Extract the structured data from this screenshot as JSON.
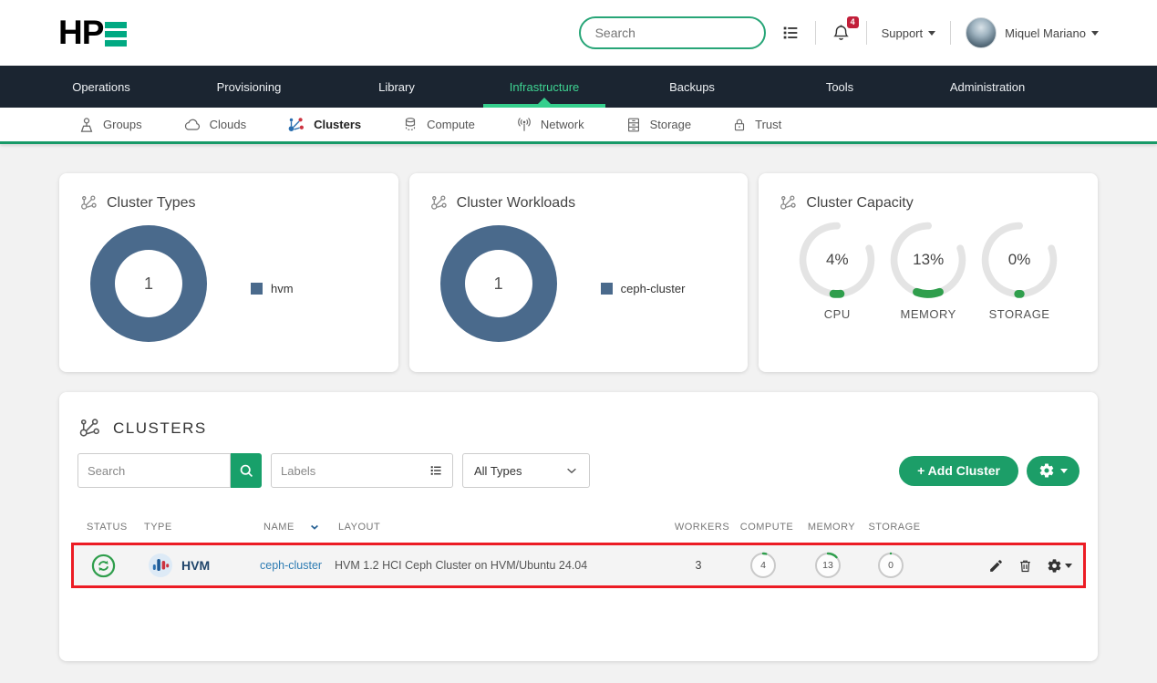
{
  "colors": {
    "brand_green": "#01a982",
    "button_green": "#1c9e68",
    "nav_dark": "#1b2531",
    "nav_active_green": "#3ed492",
    "donut_blue": "#4a6a8c",
    "gauge_green": "#2f9e4c",
    "link_blue": "#2e7cb3",
    "badge_red": "#c21f3a",
    "highlight_red": "#ec1c24"
  },
  "header": {
    "logo_hp": "HP",
    "search_placeholder": "Search",
    "notification_count": "4",
    "support_label": "Support",
    "user_name": "Miquel Mariano"
  },
  "nav": {
    "items": [
      {
        "label": "Operations",
        "active": false
      },
      {
        "label": "Provisioning",
        "active": false
      },
      {
        "label": "Library",
        "active": false
      },
      {
        "label": "Infrastructure",
        "active": true
      },
      {
        "label": "Backups",
        "active": false
      },
      {
        "label": "Tools",
        "active": false
      },
      {
        "label": "Administration",
        "active": false
      }
    ]
  },
  "subnav": {
    "items": [
      {
        "label": "Groups",
        "icon": "map-pin-icon",
        "active": false
      },
      {
        "label": "Clouds",
        "icon": "cloud-icon",
        "active": false
      },
      {
        "label": "Clusters",
        "icon": "cluster-icon",
        "active": true
      },
      {
        "label": "Compute",
        "icon": "database-icon",
        "active": false
      },
      {
        "label": "Network",
        "icon": "antenna-icon",
        "active": false
      },
      {
        "label": "Storage",
        "icon": "drive-stack-icon",
        "active": false
      },
      {
        "label": "Trust",
        "icon": "lock-icon",
        "active": false
      }
    ]
  },
  "cards": [
    {
      "title": "Cluster Types",
      "center_value": "1",
      "legend_label": "hvm"
    },
    {
      "title": "Cluster Workloads",
      "center_value": "1",
      "legend_label": "ceph-cluster"
    },
    {
      "title": "Cluster Capacity",
      "gauges": [
        {
          "label": "CPU",
          "percent": 4,
          "percent_label": "4%"
        },
        {
          "label": "MEMORY",
          "percent": 13,
          "percent_label": "13%"
        },
        {
          "label": "STORAGE",
          "percent": 0,
          "percent_label": "0%"
        }
      ]
    }
  ],
  "chart_data": [
    {
      "type": "pie",
      "title": "Cluster Types",
      "labels": [
        "hvm"
      ],
      "values": [
        1
      ],
      "center_total": 1,
      "legend_position": "right"
    },
    {
      "type": "pie",
      "title": "Cluster Workloads",
      "labels": [
        "ceph-cluster"
      ],
      "values": [
        1
      ],
      "center_total": 1,
      "legend_position": "right"
    },
    {
      "type": "gauge",
      "title": "Cluster Capacity",
      "categories": [
        "CPU",
        "MEMORY",
        "STORAGE"
      ],
      "values": [
        4,
        13,
        0
      ],
      "unit": "%",
      "range": [
        0,
        100
      ]
    }
  ],
  "clusters": {
    "title": "CLUSTERS",
    "search_placeholder": "Search",
    "labels_placeholder": "Labels",
    "type_filter": "All Types",
    "add_button": "+ Add Cluster",
    "columns": {
      "status": "STATUS",
      "type": "TYPE",
      "name": "NAME",
      "layout": "LAYOUT",
      "workers": "WORKERS",
      "compute": "COMPUTE",
      "memory": "MEMORY",
      "storage": "STORAGE"
    },
    "rows": [
      {
        "status": "syncing",
        "type": "HVM",
        "name": "ceph-cluster",
        "layout": "HVM 1.2 HCI Ceph Cluster on HVM/Ubuntu 24.04",
        "workers": "3",
        "compute": 4,
        "memory": 13,
        "storage": 0
      }
    ]
  }
}
